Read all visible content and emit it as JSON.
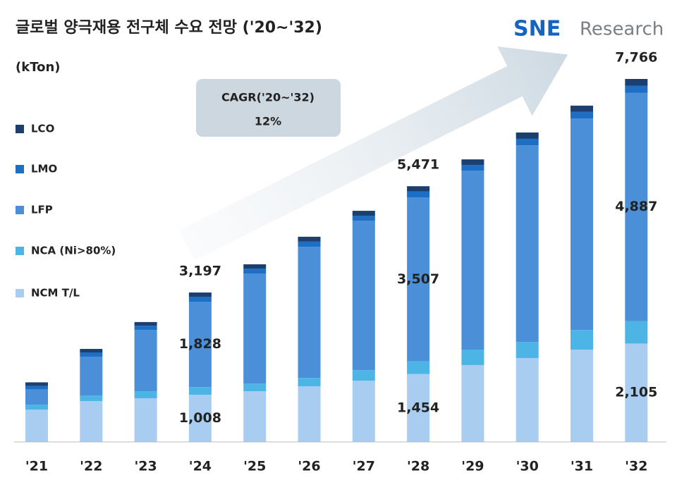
{
  "chart_data": {
    "type": "stacked_bar",
    "title": "글로벌 양극재용 전구체 수요 전망 ('20~'32)",
    "unit": "(kTon)",
    "logo": [
      "SNE",
      "Research"
    ],
    "cagr_box": {
      "label": "CAGR('20~'32)",
      "value": "12%"
    },
    "categories": [
      "'21",
      "'22",
      "'23",
      "'24",
      "'25",
      "'26",
      "'27",
      "'28",
      "'29",
      "'30",
      "'31",
      "'32"
    ],
    "series": [
      {
        "name": "NCM T/L",
        "color": "#a9cdf0",
        "values": [
          690,
          875,
          935,
          1008,
          1085,
          1190,
          1310,
          1454,
          1645,
          1795,
          1975,
          2105
        ],
        "value_labels": [
          null,
          null,
          null,
          "1,008",
          null,
          null,
          null,
          "1,454",
          null,
          null,
          null,
          "2,105"
        ]
      },
      {
        "name": "NCA (Ni>80%)",
        "color": "#4db5e6",
        "values": [
          105,
          120,
          150,
          165,
          165,
          180,
          225,
          270,
          330,
          345,
          420,
          480
        ]
      },
      {
        "name": "LFP",
        "color": "#4a8fd8",
        "values": [
          330,
          830,
          1310,
          1828,
          2350,
          2805,
          3195,
          3507,
          3830,
          4205,
          4525,
          4887
        ],
        "value_labels": [
          null,
          null,
          null,
          "1,828",
          null,
          null,
          null,
          "3,507",
          null,
          null,
          null,
          "4,887"
        ]
      },
      {
        "name": "LMO",
        "color": "#1c6fc4",
        "values": [
          75,
          90,
          90,
          100,
          105,
          110,
          110,
          125,
          120,
          140,
          140,
          150
        ]
      },
      {
        "name": "LCO",
        "color": "#1b3f6e",
        "values": [
          75,
          75,
          80,
          96,
          95,
          105,
          105,
          115,
          120,
          135,
          135,
          144
        ]
      }
    ],
    "total_values": [
      null,
      null,
      null,
      3197,
      null,
      null,
      null,
      5471,
      null,
      null,
      null,
      7766
    ],
    "total_labels": [
      null,
      null,
      null,
      "3,197",
      null,
      null,
      null,
      "5,471",
      null,
      null,
      null,
      "7,766"
    ]
  }
}
